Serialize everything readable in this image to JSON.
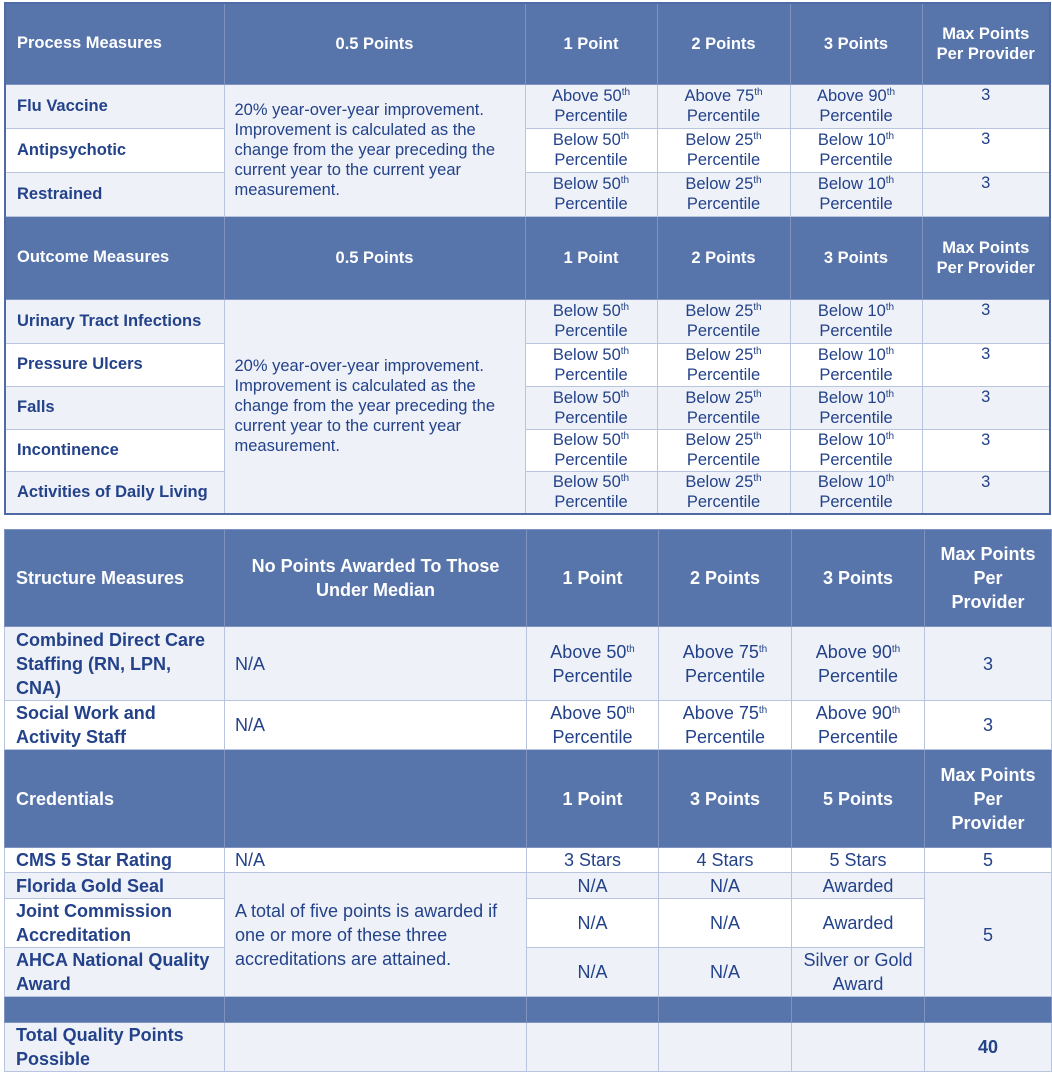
{
  "colors": {
    "header_bg": "#5774ab",
    "row_light": "#eef1f7",
    "text": "#23428a",
    "border": "#b9c5de"
  },
  "table1": {
    "sections": [
      {
        "header": [
          "Process Measures",
          "0.5 Points",
          "1 Point",
          "2 Points",
          "3 Points",
          "Max Points Per Provider"
        ],
        "description": "20% year-over-year improvement. Improvement is calculated as the change from the year preceding the current year to the current year measurement.",
        "rows": [
          {
            "name": "Flu Vaccine",
            "cells": [
              {
                "t": "Above 50",
                "s": "th",
                "u": "Percentile"
              },
              {
                "t": "Above 75",
                "s": "th",
                "u": "Percentile"
              },
              {
                "t": "Above 90",
                "s": "th",
                "u": "Percentile"
              }
            ],
            "max": "3"
          },
          {
            "name": "Antipsychotic",
            "cells": [
              {
                "t": "Below 50",
                "s": "th",
                "u": "Percentile"
              },
              {
                "t": "Below 25",
                "s": "th",
                "u": "Percentile"
              },
              {
                "t": "Below 10",
                "s": "th",
                "u": "Percentile"
              }
            ],
            "max": "3"
          },
          {
            "name": "Restrained",
            "cells": [
              {
                "t": "Below 50",
                "s": "th",
                "u": "Percentile"
              },
              {
                "t": "Below 25",
                "s": "th",
                "u": "Percentile"
              },
              {
                "t": "Below 10",
                "s": "th",
                "u": "Percentile"
              }
            ],
            "max": "3"
          }
        ]
      },
      {
        "header": [
          "Outcome Measures",
          "0.5 Points",
          "1 Point",
          "2 Points",
          "3 Points",
          "Max Points Per Provider"
        ],
        "description": "20% year-over-year improvement. Improvement is calculated as the change from the year preceding the current year to the current year measurement.",
        "rows": [
          {
            "name": "Urinary Tract Infections",
            "cells": [
              {
                "t": "Below 50",
                "s": "th",
                "u": "Percentile"
              },
              {
                "t": "Below 25",
                "s": "th",
                "u": "Percentile"
              },
              {
                "t": "Below 10",
                "s": "th",
                "u": "Percentile"
              }
            ],
            "max": "3"
          },
          {
            "name": "Pressure Ulcers",
            "cells": [
              {
                "t": "Below 50",
                "s": "th",
                "u": "Percentile"
              },
              {
                "t": "Below 25",
                "s": "th",
                "u": "Percentile"
              },
              {
                "t": "Below 10",
                "s": "th",
                "u": "Percentile"
              }
            ],
            "max": "3"
          },
          {
            "name": "Falls",
            "cells": [
              {
                "t": "Below 50",
                "s": "th",
                "u": "Percentile"
              },
              {
                "t": "Below 25",
                "s": "th",
                "u": "Percentile"
              },
              {
                "t": "Below 10",
                "s": "th",
                "u": "Percentile"
              }
            ],
            "max": "3"
          },
          {
            "name": "Incontinence",
            "cells": [
              {
                "t": "Below 50",
                "s": "th",
                "u": "Percentile"
              },
              {
                "t": "Below 25",
                "s": "th",
                "u": "Percentile"
              },
              {
                "t": "Below 10",
                "s": "th",
                "u": "Percentile"
              }
            ],
            "max": "3"
          },
          {
            "name": "Activities of Daily Living",
            "cells": [
              {
                "t": "Below 50",
                "s": "th",
                "u": "Percentile"
              },
              {
                "t": "Below 25",
                "s": "th",
                "u": "Percentile"
              },
              {
                "t": "Below 10",
                "s": "th",
                "u": "Percentile"
              }
            ],
            "max": "3"
          }
        ]
      }
    ]
  },
  "table2": {
    "structure": {
      "header": [
        "Structure Measures",
        "No Points Awarded To Those Under Median",
        "1 Point",
        "2 Points",
        "3 Points",
        "Max Points Per Provider"
      ],
      "rows": [
        {
          "name": "Combined Direct Care Staffing (RN, LPN, CNA)",
          "desc": "N/A",
          "cells": [
            {
              "t": "Above 50",
              "s": "th",
              "u": "Percentile"
            },
            {
              "t": "Above 75",
              "s": "th",
              "u": "Percentile"
            },
            {
              "t": "Above 90",
              "s": "th",
              "u": "Percentile"
            }
          ],
          "max": "3"
        },
        {
          "name": "Social Work and Activity Staff",
          "desc": "N/A",
          "cells": [
            {
              "t": "Above 50",
              "s": "th",
              "u": "Percentile"
            },
            {
              "t": "Above 75",
              "s": "th",
              "u": "Percentile"
            },
            {
              "t": "Above 90",
              "s": "th",
              "u": "Percentile"
            }
          ],
          "max": "3"
        }
      ]
    },
    "credentials": {
      "header": [
        "Credentials",
        "",
        "1 Point",
        "3 Points",
        "5 Points",
        "Max Points Per Provider"
      ],
      "cms": {
        "name": "CMS 5 Star Rating",
        "desc": "N/A",
        "cells": [
          "3 Stars",
          "4 Stars",
          "5 Stars"
        ],
        "max": "5"
      },
      "group_description": "A total of five points is awarded if one or more of these three accreditations are attained.",
      "group_max": "5",
      "rows": [
        {
          "name": "Florida Gold Seal",
          "cells": [
            "N/A",
            "N/A",
            "Awarded"
          ]
        },
        {
          "name": "Joint Commission Accreditation",
          "cells": [
            "N/A",
            "N/A",
            "Awarded"
          ]
        },
        {
          "name": "AHCA National Quality Award",
          "cells": [
            "N/A",
            "N/A",
            "Silver or Gold Award"
          ]
        }
      ]
    },
    "total": {
      "label": "Total Quality Points Possible",
      "value": "40"
    }
  }
}
